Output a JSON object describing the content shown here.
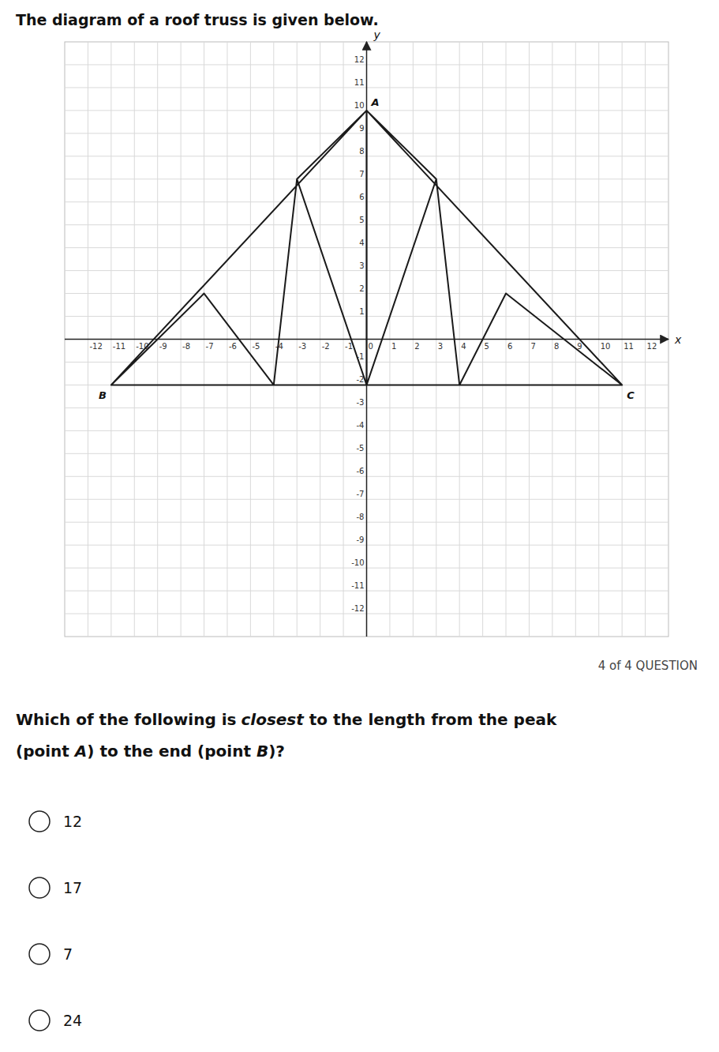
{
  "chart_data": {
    "type": "line",
    "title": "The diagram of a roof truss is given below.",
    "x_label": "x",
    "y_label": "y",
    "xlim": [
      -13,
      13
    ],
    "ylim": [
      -13,
      13
    ],
    "xticks": [
      -12,
      -11,
      -10,
      -9,
      -8,
      -7,
      -6,
      -5,
      -4,
      -3,
      -2,
      -1,
      0,
      1,
      2,
      3,
      4,
      5,
      6,
      7,
      8,
      9,
      10,
      11,
      12
    ],
    "yticks": [
      -12,
      -11,
      -10,
      -9,
      -8,
      -7,
      -6,
      -5,
      -4,
      -3,
      -2,
      -1,
      1,
      2,
      3,
      4,
      5,
      6,
      7,
      8,
      9,
      10,
      11,
      12
    ],
    "grid": true,
    "series": [
      {
        "color": "#1a1a1a",
        "x": [
          -11,
          0,
          null,
          0,
          11,
          null,
          -11,
          11,
          null,
          0,
          0,
          null,
          0,
          -3,
          null,
          -3,
          0,
          null,
          -3,
          -4,
          null,
          0,
          3,
          null,
          3,
          0,
          null,
          3,
          4,
          null,
          -11,
          -7,
          null,
          -7,
          -4,
          null,
          4,
          6,
          null,
          6,
          11
        ],
        "values": [
          -2,
          10,
          null,
          10,
          -2,
          null,
          -2,
          -2,
          null,
          10,
          -2,
          null,
          10,
          7,
          null,
          7,
          -2,
          null,
          7,
          -2,
          null,
          10,
          7,
          null,
          7,
          -2,
          null,
          7,
          -2,
          null,
          -2,
          2,
          null,
          2,
          -2,
          null,
          -2,
          2,
          null,
          2,
          -2
        ]
      }
    ],
    "annotations": [
      {
        "text": "A",
        "x": 0,
        "y": 10,
        "anchor": "above-right"
      },
      {
        "text": "B",
        "x": -11,
        "y": -2,
        "anchor": "below-left"
      },
      {
        "text": "C",
        "x": 11,
        "y": -2,
        "anchor": "below-right"
      }
    ],
    "question_label": "4 of 4 QUESTION",
    "question": [
      [
        {
          "text": "Which of the following is"
        },
        {
          "text": "closest",
          "style": "italic"
        },
        {
          "text": " to the length from the peak"
        }
      ],
      [
        {
          "text": "(point "
        },
        {
          "text": "A",
          "style": "italic"
        },
        {
          "text": ") to the end (point "
        },
        {
          "text": "B",
          "style": "italic"
        },
        {
          "text": ")?"
        }
      ]
    ],
    "choices": [
      "12",
      "17",
      "7",
      "24"
    ]
  }
}
